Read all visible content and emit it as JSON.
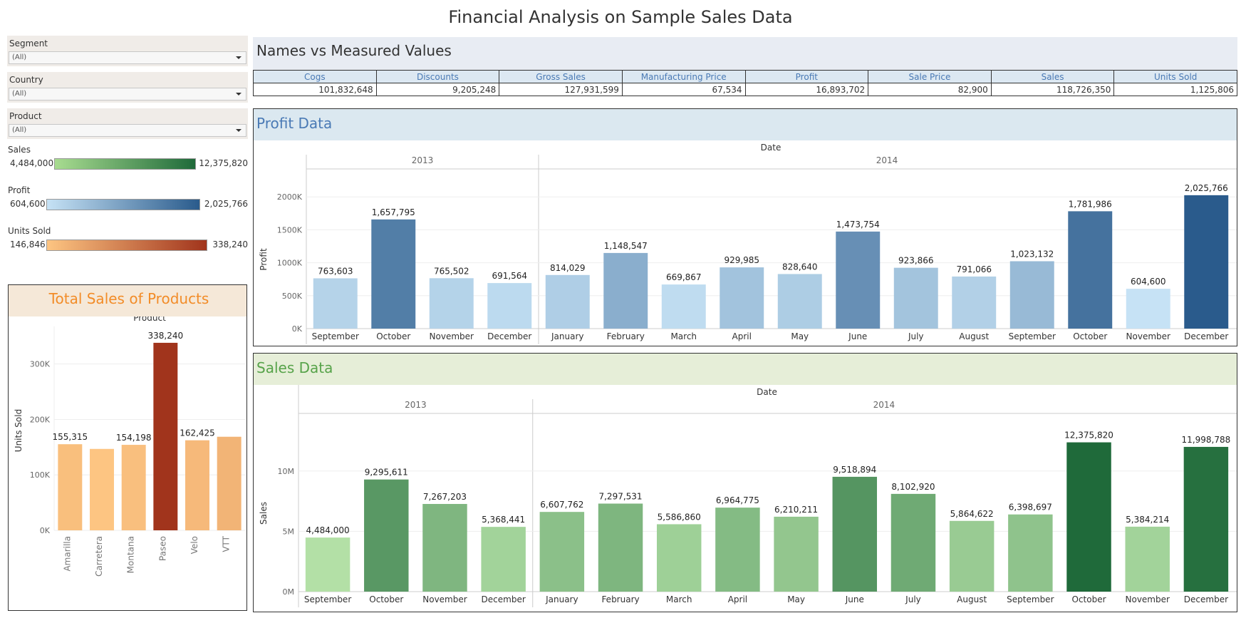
{
  "title": "Financial Analysis on Sample Sales Data",
  "filters": [
    {
      "label": "Segment",
      "value": "(All)"
    },
    {
      "label": "Country",
      "value": "(All)"
    },
    {
      "label": "Product",
      "value": "(All)"
    }
  ],
  "legends": {
    "sales": {
      "label": "Sales",
      "min": "4,484,000",
      "max": "12,375,820",
      "from": "#a8dc90",
      "to": "#1f6a3a"
    },
    "profit": {
      "label": "Profit",
      "min": "604,600",
      "max": "2,025,766",
      "from": "#c6e2f5",
      "to": "#2a5b8c"
    },
    "units": {
      "label": "Units Sold",
      "min": "146,846",
      "max": "338,240",
      "from": "#fdc582",
      "to": "#a1341c"
    }
  },
  "names_panel": {
    "title": "Names vs Measured Values",
    "columns": [
      "Cogs",
      "Discounts",
      "Gross Sales",
      "Manufacturing Price",
      "Profit",
      "Sale Price",
      "Sales",
      "Units Sold"
    ],
    "values": [
      "101,832,648",
      "9,205,248",
      "127,931,599",
      "67,534",
      "16,893,702",
      "82,900",
      "118,726,350",
      "1,125,806"
    ]
  },
  "profit_panel": {
    "title": "Profit Data",
    "header_bg": "#dbe8f0",
    "title_color": "#4a7ab5"
  },
  "sales_panel": {
    "title": "Sales Data",
    "header_bg": "#e6eed8",
    "title_color": "#57a34a"
  },
  "products_panel": {
    "title": "Total Sales of Products",
    "header_bg": "#f5e8d8",
    "title_color": "#f28c28"
  },
  "chart_data": [
    {
      "id": "profit",
      "type": "bar",
      "title": "Profit Data",
      "column_header": "Date",
      "groups": [
        {
          "label": "2013",
          "categories": [
            "September",
            "October",
            "November",
            "December"
          ]
        },
        {
          "label": "2014",
          "categories": [
            "January",
            "February",
            "March",
            "April",
            "May",
            "June",
            "July",
            "August",
            "September",
            "October",
            "November",
            "December"
          ]
        }
      ],
      "ylabel": "Profit",
      "ylim": [
        0,
        2100000
      ],
      "yticks": [
        0,
        500000,
        1000000,
        1500000,
        2000000
      ],
      "ytick_labels": [
        "0K",
        "500K",
        "1000K",
        "1500K",
        "2000K"
      ],
      "values": [
        763603,
        1657795,
        765502,
        691564,
        814029,
        1148547,
        669867,
        929985,
        828640,
        1473754,
        923866,
        791066,
        1023132,
        1781986,
        604600,
        2025766
      ],
      "labels": [
        "763,603",
        "1,657,795",
        "765,502",
        "691,564",
        "814,029",
        "1,148,547",
        "669,867",
        "929,985",
        "828,640",
        "1,473,754",
        "923,866",
        "791,066",
        "1,023,132",
        "1,781,986",
        "604,600",
        "2,025,766"
      ],
      "color_from": "#c6e2f5",
      "color_to": "#2a5b8c"
    },
    {
      "id": "sales",
      "type": "bar",
      "title": "Sales Data",
      "column_header": "Date",
      "groups": [
        {
          "label": "2013",
          "categories": [
            "September",
            "October",
            "November",
            "December"
          ]
        },
        {
          "label": "2014",
          "categories": [
            "January",
            "February",
            "March",
            "April",
            "May",
            "June",
            "July",
            "August",
            "September",
            "October",
            "November",
            "December"
          ]
        }
      ],
      "ylabel": "Sales",
      "ylim": [
        0,
        13000000
      ],
      "yticks": [
        0,
        5000000,
        10000000
      ],
      "ytick_labels": [
        "0M",
        "5M",
        "10M"
      ],
      "values": [
        4484000,
        9295611,
        7267203,
        5368441,
        6607762,
        7297531,
        5586860,
        6964775,
        6210211,
        9518894,
        8102920,
        5864622,
        6398697,
        12375820,
        5384214,
        11998788
      ],
      "labels": [
        "4,484,000",
        "9,295,611",
        "7,267,203",
        "5,368,441",
        "6,607,762",
        "7,297,531",
        "5,586,860",
        "6,964,775",
        "6,210,211",
        "9,518,894",
        "8,102,920",
        "5,864,622",
        "6,398,697",
        "12,375,820",
        "5,384,214",
        "11,998,788"
      ],
      "color_from": "#b3e0a6",
      "color_to": "#1f6a3a"
    },
    {
      "id": "units",
      "type": "bar",
      "title": "Total Sales of Products",
      "column_header": "Product",
      "categories": [
        "Amarilla",
        "Carretera",
        "Montana",
        "Paseo",
        "Velo",
        "VTT"
      ],
      "ylabel": "Units Sold",
      "ylim": [
        0,
        360000
      ],
      "yticks": [
        0,
        100000,
        200000,
        300000
      ],
      "ytick_labels": [
        "0K",
        "100K",
        "200K",
        "300K"
      ],
      "values": [
        155315,
        146846,
        154198,
        338240,
        162425,
        168782
      ],
      "labels": [
        "155,315",
        "",
        "154,198",
        "338,240",
        "162,425",
        ""
      ],
      "color_from": "#fdc582",
      "color_to": "#a1341c"
    }
  ]
}
